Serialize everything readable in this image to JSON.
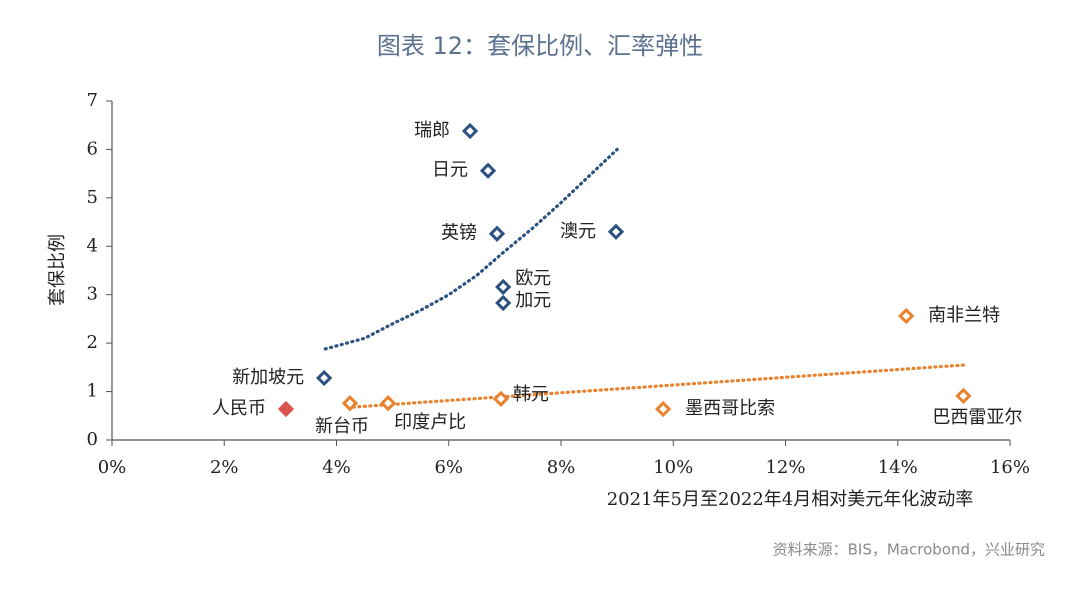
{
  "chart_data": {
    "type": "scatter",
    "title": "图表 12：套保比例、汇率弹性",
    "x_label": "2021年5月至2022年4月相对美元年化波动率",
    "y_label": "套保比例",
    "source": "资料来源：BIS，Macrobond，兴业研究",
    "xlim": [
      0,
      16
    ],
    "xticks": [
      {
        "value": 0,
        "label": "0%"
      },
      {
        "value": 2,
        "label": "2%"
      },
      {
        "value": 4,
        "label": "4%"
      },
      {
        "value": 6,
        "label": "6%"
      },
      {
        "value": 8,
        "label": "8%"
      },
      {
        "value": 10,
        "label": "10%"
      },
      {
        "value": 12,
        "label": "12%"
      },
      {
        "value": 14,
        "label": "14%"
      },
      {
        "value": 16,
        "label": "16%"
      }
    ],
    "ylim": [
      0,
      7
    ],
    "yticks": [
      0,
      1,
      2,
      3,
      4,
      5,
      6,
      7
    ],
    "grid": false,
    "series": [
      {
        "color": "#2c5282",
        "filled": false,
        "label_color": "#222222",
        "labels": [
          "瑞郎",
          "日元",
          "英镑",
          "澳元",
          "欧元",
          "加元",
          "新加坡元"
        ],
        "x": [
          6.38,
          6.7,
          6.86,
          8.98,
          6.97,
          6.97,
          3.78
        ],
        "values": [
          6.38,
          5.56,
          4.26,
          4.3,
          3.16,
          2.83,
          1.28
        ]
      },
      {
        "color": "#d9534f",
        "filled": true,
        "label_color": "#d9283a",
        "labels": [
          "人民币"
        ],
        "x": [
          3.1
        ],
        "values": [
          0.64
        ]
      },
      {
        "color": "#e8822e",
        "filled": false,
        "label_color": "#222222",
        "labels": [
          "新台币",
          "印度卢比",
          "韩元",
          "墨西哥比索",
          "南非兰特",
          "巴西雷亚尔"
        ],
        "x": [
          4.24,
          4.92,
          6.93,
          9.82,
          14.15,
          15.17
        ],
        "values": [
          0.76,
          0.76,
          0.85,
          0.64,
          2.56,
          0.91
        ]
      }
    ],
    "trendlines": [
      {
        "color": "#2c5282",
        "x": [
          3.8,
          4.5,
          5,
          5.5,
          6,
          6.5,
          7,
          7.5,
          8,
          8.5,
          9
        ],
        "values": [
          1.88,
          2.1,
          2.4,
          2.68,
          3.0,
          3.4,
          3.9,
          4.38,
          4.9,
          5.45,
          6.0
        ]
      },
      {
        "color": "#e8822e",
        "x": [
          4.3,
          15.2
        ],
        "values": [
          0.68,
          1.55
        ]
      }
    ]
  }
}
